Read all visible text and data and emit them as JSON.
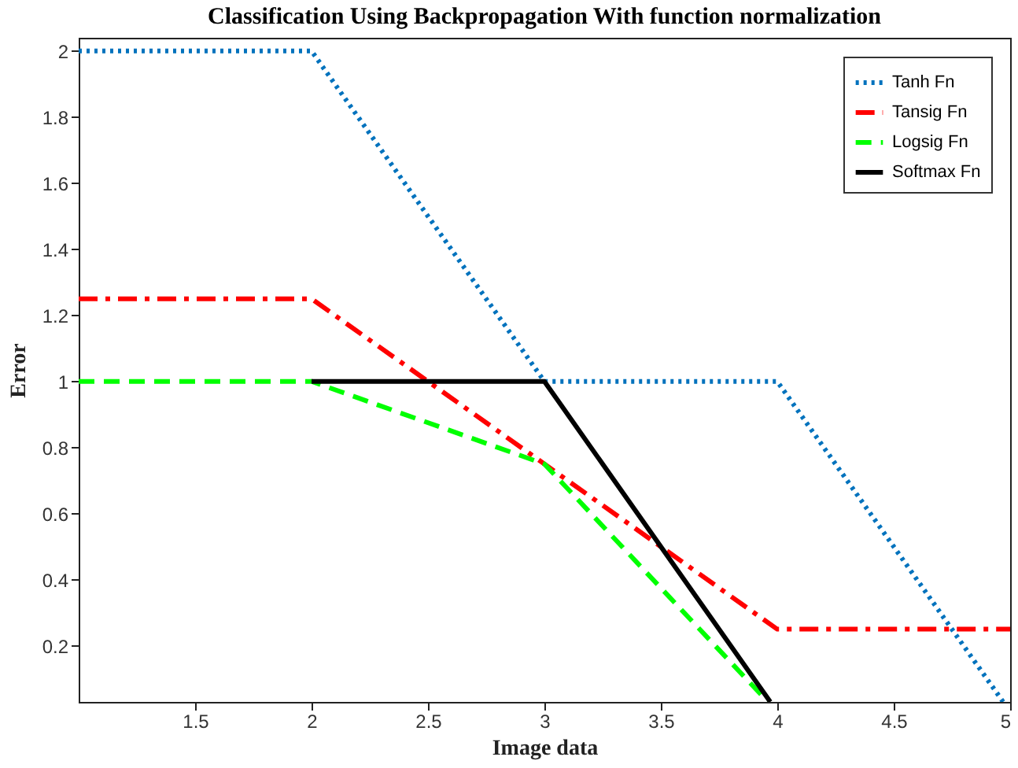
{
  "chart_data": {
    "type": "line",
    "title": "Classification Using Backpropagation With function normalization",
    "xlabel": "Image data",
    "ylabel": "Error",
    "xlim": [
      1,
      5
    ],
    "xticks": [
      1.5,
      2,
      2.5,
      3,
      3.5,
      4,
      4.5,
      5
    ],
    "ylim": [
      0.03,
      2.04
    ],
    "yticks": [
      0.2,
      0.4,
      0.6,
      0.8,
      1,
      1.2,
      1.4,
      1.6,
      1.8,
      2
    ],
    "grid": false,
    "legend": "top right",
    "marker": "none",
    "series": [
      {
        "name": "Tanh Fn",
        "color": "#0072bd",
        "line_style": "dotted",
        "x": [
          1,
          2,
          3,
          4,
          4.97
        ],
        "values": [
          2,
          2,
          1,
          1,
          0.03
        ]
      },
      {
        "name": "Tansig Fn",
        "color": "#ff0000",
        "line_style": "dashdot",
        "x": [
          1,
          2,
          3,
          4,
          5
        ],
        "values": [
          1.25,
          1.25,
          0.75,
          0.25,
          0.25
        ]
      },
      {
        "name": "Logsig Fn",
        "color": "#00ff00",
        "line_style": "dashed",
        "x": [
          1,
          2,
          3,
          3.96
        ],
        "values": [
          1,
          1,
          0.75,
          0.03
        ]
      },
      {
        "name": "Softmax Fn",
        "color": "#000000",
        "line_style": "solid",
        "x": [
          2,
          3,
          3.97
        ],
        "values": [
          1,
          1,
          0.03
        ]
      }
    ]
  }
}
